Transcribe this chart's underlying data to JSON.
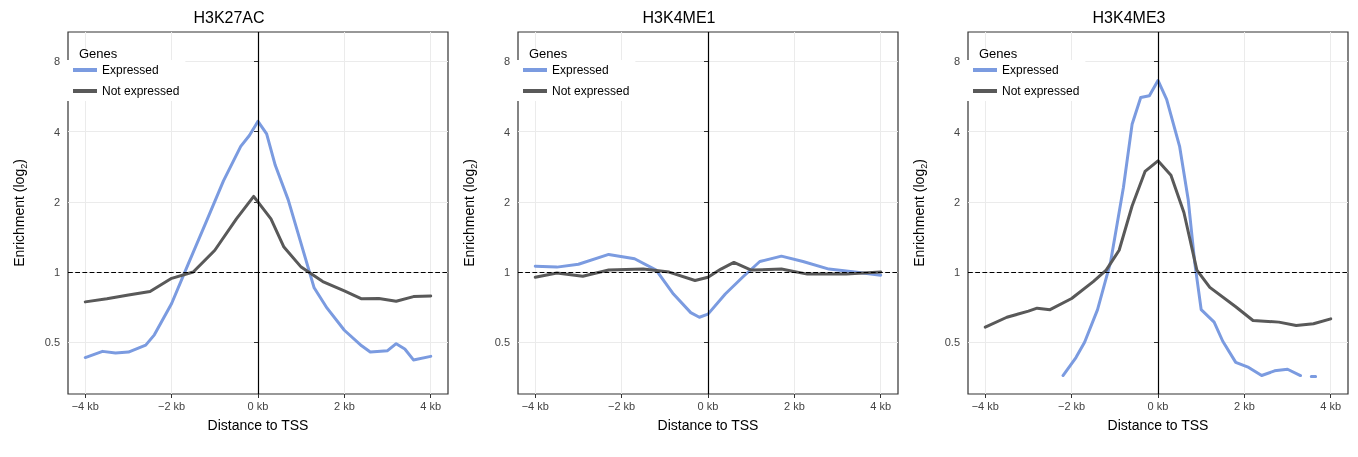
{
  "chart_data": [
    {
      "type": "line",
      "title": "H3K27AC",
      "xlabel": "Distance to TSS",
      "ylabel": "Enrichment (log$_{2}$)",
      "legend_title": "Genes",
      "legend": "top left",
      "grid": true,
      "log": "y",
      "line_style": "solid",
      "marker": "none",
      "xlim": [
        -4.4,
        4.4
      ],
      "xticks": [
        {
          "value": -4,
          "label": "−4 kb"
        },
        {
          "value": -2,
          "label": "−2 kb"
        },
        {
          "value": 0,
          "label": "0 kb"
        },
        {
          "value": 2,
          "label": "2 kb"
        },
        {
          "value": 4,
          "label": "4 kb"
        }
      ],
      "ylim": [
        0.3,
        10.7
      ],
      "yticks": [
        0.5,
        1,
        2,
        4,
        8
      ],
      "ref_lines": [
        {
          "axis": "x",
          "value": 0,
          "color": "#000000",
          "line_style": "solid"
        },
        {
          "axis": "y",
          "value": 1,
          "color": "#000000",
          "line_style": "dashed"
        }
      ],
      "series": [
        {
          "name": "Expressed",
          "color": "#7b9be0",
          "x": [
            -4,
            -3.6,
            -3.3,
            -3,
            -2.6,
            -2.4,
            -2,
            -1.6,
            -1.2,
            -0.8,
            -0.4,
            -0.2,
            0,
            0.2,
            0.4,
            0.7,
            1,
            1.3,
            1.6,
            2,
            2.4,
            2.6,
            3,
            3.2,
            3.4,
            3.6,
            4
          ],
          "values": [
            0.43,
            0.457,
            0.45,
            0.454,
            0.486,
            0.538,
            0.733,
            1.1,
            1.64,
            2.46,
            3.46,
            3.85,
            4.43,
            3.91,
            2.87,
            2.04,
            1.32,
            0.856,
            0.7,
            0.563,
            0.483,
            0.454,
            0.46,
            0.493,
            0.468,
            0.42,
            0.435
          ]
        },
        {
          "name": "Not expressed",
          "color": "#595959",
          "x": [
            -4,
            -3.5,
            -3,
            -2.5,
            -2,
            -1.5,
            -1,
            -0.5,
            -0.1,
            0.3,
            0.6,
            1,
            1.5,
            2,
            2.4,
            2.8,
            3.2,
            3.6,
            4
          ],
          "values": [
            0.745,
            0.768,
            0.797,
            0.825,
            0.94,
            1.0,
            1.24,
            1.69,
            2.11,
            1.69,
            1.28,
            1.05,
            0.91,
            0.83,
            0.768,
            0.77,
            0.75,
            0.785,
            0.79
          ]
        }
      ]
    },
    {
      "type": "line",
      "title": "H3K4ME1",
      "xlabel": "Distance to TSS",
      "ylabel": "Enrichment (log$_{2}$)",
      "legend_title": "Genes",
      "legend": "top left",
      "grid": true,
      "log": "y",
      "line_style": "solid",
      "marker": "none",
      "xlim": [
        -4.4,
        4.4
      ],
      "xticks": [
        {
          "value": -4,
          "label": "−4 kb"
        },
        {
          "value": -2,
          "label": "−2 kb"
        },
        {
          "value": 0,
          "label": "0 kb"
        },
        {
          "value": 2,
          "label": "2 kb"
        },
        {
          "value": 4,
          "label": "4 kb"
        }
      ],
      "ylim": [
        0.3,
        10.7
      ],
      "yticks": [
        0.5,
        1,
        2,
        4,
        8
      ],
      "ref_lines": [
        {
          "axis": "x",
          "value": 0,
          "color": "#000000",
          "line_style": "solid"
        },
        {
          "axis": "y",
          "value": 1,
          "color": "#000000",
          "line_style": "dashed"
        }
      ],
      "series": [
        {
          "name": "Expressed",
          "color": "#7b9be0",
          "x": [
            -4,
            -3.5,
            -3,
            -2.3,
            -1.7,
            -1.2,
            -0.8,
            -0.4,
            -0.2,
            0,
            0.4,
            0.8,
            1.2,
            1.7,
            2.2,
            2.8,
            3.4,
            4
          ],
          "values": [
            1.06,
            1.05,
            1.08,
            1.19,
            1.14,
            1.02,
            0.805,
            0.67,
            0.64,
            0.66,
            0.805,
            0.95,
            1.11,
            1.17,
            1.11,
            1.03,
            1.0,
            0.97
          ]
        },
        {
          "name": "Not expressed",
          "color": "#595959",
          "x": [
            -4,
            -3.5,
            -2.9,
            -2.3,
            -1.5,
            -0.9,
            -0.3,
            0,
            0.3,
            0.6,
            1,
            1.7,
            2.3,
            3.2,
            4
          ],
          "values": [
            0.95,
            0.99,
            0.96,
            1.02,
            1.03,
            1.0,
            0.92,
            0.95,
            1.03,
            1.1,
            1.02,
            1.03,
            0.98,
            0.98,
            1.0
          ]
        }
      ]
    },
    {
      "type": "line",
      "title": "H3K4ME3",
      "xlabel": "Distance to TSS",
      "ylabel": "Enrichment (log$_{2}$)",
      "legend_title": "Genes",
      "legend": "top left",
      "grid": true,
      "log": "y",
      "line_style": "solid",
      "marker": "none",
      "xlim": [
        -4.4,
        4.4
      ],
      "xticks": [
        {
          "value": -4,
          "label": "−4 kb"
        },
        {
          "value": -2,
          "label": "−2 kb"
        },
        {
          "value": 0,
          "label": "0 kb"
        },
        {
          "value": 2,
          "label": "2 kb"
        },
        {
          "value": 4,
          "label": "4 kb"
        }
      ],
      "ylim": [
        0.3,
        10.7
      ],
      "yticks": [
        0.5,
        1,
        2,
        4,
        8
      ],
      "ref_lines": [
        {
          "axis": "x",
          "value": 0,
          "color": "#000000",
          "line_style": "solid"
        },
        {
          "axis": "y",
          "value": 1,
          "color": "#000000",
          "line_style": "dashed"
        }
      ],
      "series": [
        {
          "name": "Expressed",
          "color": "#7b9be0",
          "x": [
            -2.2,
            -1.9,
            -1.7,
            -1.4,
            -1.1,
            -0.8,
            -0.6,
            -0.4,
            -0.2,
            0,
            0.2,
            0.5,
            0.7,
            0.85,
            1,
            1.3,
            1.5,
            1.8,
            2.1,
            2.4,
            2.7,
            3,
            3.3,
            3.45,
            3.55,
            3.65
          ],
          "values": [
            0.36,
            0.43,
            0.5,
            0.69,
            1.1,
            2.31,
            4.3,
            5.6,
            5.7,
            6.63,
            5.5,
            3.46,
            2.04,
            1.1,
            0.69,
            0.61,
            0.505,
            0.41,
            0.39,
            0.36,
            0.377,
            0.383,
            0.36,
            null,
            0.357,
            0.357
          ]
        },
        {
          "name": "Not expressed",
          "color": "#595959",
          "x": [
            -4,
            -3.5,
            -3,
            -2.8,
            -2.5,
            -2,
            -1.5,
            -1.2,
            -0.9,
            -0.6,
            -0.3,
            0,
            0.3,
            0.6,
            0.9,
            1.2,
            1.8,
            2.2,
            2.8,
            3.2,
            3.6,
            4
          ],
          "values": [
            0.58,
            0.64,
            0.68,
            0.7,
            0.69,
            0.77,
            0.91,
            1.02,
            1.24,
            1.92,
            2.7,
            3.0,
            2.6,
            1.8,
            1.02,
            0.86,
            0.71,
            0.62,
            0.61,
            0.59,
            0.6,
            0.63
          ]
        }
      ]
    }
  ]
}
